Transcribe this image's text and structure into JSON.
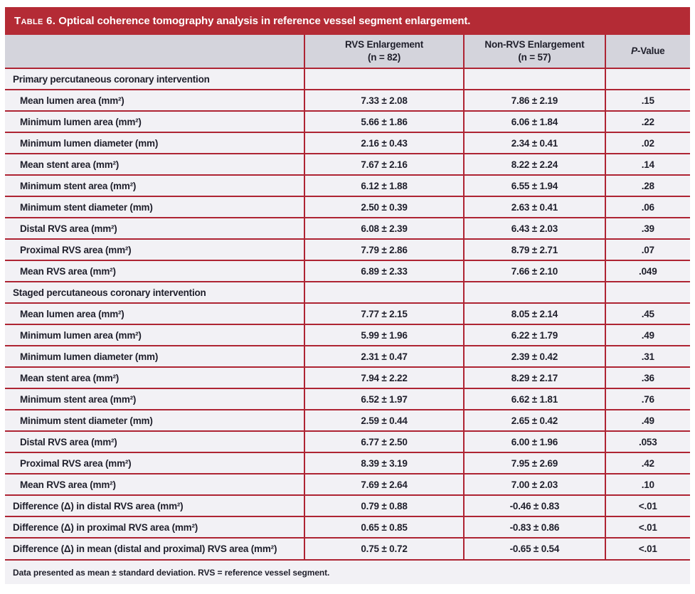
{
  "title": {
    "label": "Table 6.",
    "text": " Optical coherence tomography analysis in reference vessel segment enlargement."
  },
  "columns": {
    "rvs": {
      "line1": "RVS Enlargement",
      "line2": "(n = 82)"
    },
    "non_rvs": {
      "line1": "Non-RVS Enlargement",
      "line2": "(n = 57)"
    },
    "pvalue": {
      "italic": "P",
      "rest": "-Value"
    }
  },
  "rows": [
    {
      "type": "section",
      "label": "Primary percutaneous coronary intervention",
      "rvs": "",
      "non_rvs": "",
      "p": ""
    },
    {
      "type": "data",
      "label": "Mean lumen area (mm²)",
      "rvs": "7.33 ± 2.08",
      "non_rvs": "7.86 ± 2.19",
      "p": ".15"
    },
    {
      "type": "data",
      "label": "Minimum lumen area (mm²)",
      "rvs": "5.66 ± 1.86",
      "non_rvs": "6.06 ± 1.84",
      "p": ".22"
    },
    {
      "type": "data",
      "label": "Minimum lumen diameter (mm)",
      "rvs": "2.16 ± 0.43",
      "non_rvs": "2.34 ± 0.41",
      "p": ".02"
    },
    {
      "type": "data",
      "label": "Mean stent area (mm²)",
      "rvs": "7.67 ± 2.16",
      "non_rvs": "8.22 ± 2.24",
      "p": ".14"
    },
    {
      "type": "data",
      "label": "Minimum stent area (mm²)",
      "rvs": "6.12 ± 1.88",
      "non_rvs": "6.55 ± 1.94",
      "p": ".28"
    },
    {
      "type": "data",
      "label": "Minimum stent diameter (mm)",
      "rvs": "2.50 ± 0.39",
      "non_rvs": "2.63 ± 0.41",
      "p": ".06"
    },
    {
      "type": "data",
      "label": "Distal RVS area (mm²)",
      "rvs": "6.08 ± 2.39",
      "non_rvs": "6.43 ± 2.03",
      "p": ".39"
    },
    {
      "type": "data",
      "label": "Proximal RVS area (mm²)",
      "rvs": "7.79 ± 2.86",
      "non_rvs": "8.79 ± 2.71",
      "p": ".07"
    },
    {
      "type": "data",
      "label": "Mean RVS area (mm²)",
      "rvs": "6.89 ± 2.33",
      "non_rvs": "7.66 ± 2.10",
      "p": ".049"
    },
    {
      "type": "section",
      "label": "Staged percutaneous coronary intervention",
      "rvs": "",
      "non_rvs": "",
      "p": ""
    },
    {
      "type": "data",
      "label": "Mean lumen area (mm²)",
      "rvs": "7.77 ± 2.15",
      "non_rvs": "8.05 ± 2.14",
      "p": ".45"
    },
    {
      "type": "data",
      "label": "Minimum lumen area (mm²)",
      "rvs": "5.99 ± 1.96",
      "non_rvs": "6.22 ± 1.79",
      "p": ".49"
    },
    {
      "type": "data",
      "label": "Minimum lumen diameter (mm)",
      "rvs": "2.31 ± 0.47",
      "non_rvs": "2.39 ± 0.42",
      "p": ".31"
    },
    {
      "type": "data",
      "label": "Mean stent area (mm²)",
      "rvs": "7.94 ± 2.22",
      "non_rvs": "8.29 ± 2.17",
      "p": ".36"
    },
    {
      "type": "data",
      "label": "Minimum stent area (mm²)",
      "rvs": "6.52 ± 1.97",
      "non_rvs": "6.62 ± 1.81",
      "p": ".76"
    },
    {
      "type": "data",
      "label": "Minimum stent diameter (mm)",
      "rvs": "2.59 ± 0.44",
      "non_rvs": "2.65 ± 0.42",
      "p": ".49"
    },
    {
      "type": "data",
      "label": "Distal RVS area (mm²)",
      "rvs": "6.77 ± 2.50",
      "non_rvs": "6.00 ± 1.96",
      "p": ".053"
    },
    {
      "type": "data",
      "label": "Proximal RVS area (mm²)",
      "rvs": "8.39 ± 3.19",
      "non_rvs": "7.95 ± 2.69",
      "p": ".42"
    },
    {
      "type": "data",
      "label": "Mean RVS area (mm²)",
      "rvs": "7.69 ± 2.64",
      "non_rvs": "7.00 ± 2.03",
      "p": ".10"
    },
    {
      "type": "diff",
      "label": "Difference (Δ) in distal RVS area (mm²)",
      "rvs": "0.79 ± 0.88",
      "non_rvs": "-0.46 ± 0.83",
      "p": "<.01"
    },
    {
      "type": "diff",
      "label": "Difference (Δ) in proximal RVS area (mm²)",
      "rvs": "0.65 ± 0.85",
      "non_rvs": "-0.83 ± 0.86",
      "p": "<.01"
    },
    {
      "type": "diff",
      "label": "Difference (Δ) in mean (distal and proximal) RVS area (mm²)",
      "rvs": "0.75 ± 0.72",
      "non_rvs": "-0.65 ± 0.54",
      "p": "<.01"
    }
  ],
  "footnote": "Data presented as mean ± standard deviation. RVS = reference vessel segment.",
  "colors": {
    "title_bar_red": "#b42b35",
    "divider_red": "#ae2433",
    "header_row_gray": "#d4d4dc",
    "row_background": "#f2f1f5",
    "text": "#1f1f2b"
  }
}
